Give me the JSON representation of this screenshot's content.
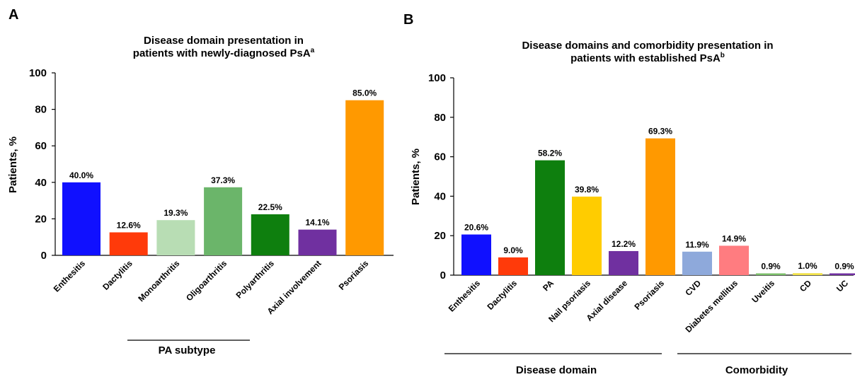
{
  "chart_data": [
    {
      "type": "bar",
      "panel": "A",
      "title_lines": [
        "Disease domain presentation in",
        "patients with newly-diagnosed PsA"
      ],
      "title_superscript": "a",
      "ylabel": "Patients, %",
      "ylim": [
        0,
        100
      ],
      "yticks": [
        0,
        20,
        40,
        60,
        80,
        100
      ],
      "categories": [
        "Enthesitis",
        "Dactylitis",
        "Monoarthritis",
        "Oligoarthritis",
        "Polyarthritis",
        "Axial involvement",
        "Psoriasis"
      ],
      "values": [
        40.0,
        12.6,
        19.3,
        37.3,
        22.5,
        14.1,
        85.0
      ],
      "value_labels": [
        "40.0%",
        "12.6%",
        "19.3%",
        "37.3%",
        "22.5%",
        "14.1%",
        "85.0%"
      ],
      "colors": [
        "#1010FF",
        "#FF3A0A",
        "#B8DDB4",
        "#6BB56A",
        "#0E7F0E",
        "#7030A0",
        "#FF9900"
      ],
      "group_labels": [
        "PA subtype"
      ]
    },
    {
      "type": "bar",
      "panel": "B",
      "title_lines": [
        "Disease domains and comorbidity presentation in",
        "patients with established PsA"
      ],
      "title_superscript": "b",
      "ylabel": "Patients, %",
      "ylim": [
        0,
        100
      ],
      "yticks": [
        0,
        20,
        40,
        60,
        80,
        100
      ],
      "categories": [
        "Enthesitis",
        "Dactylitis",
        "PA",
        "Nail psoriasis",
        "Axial disease",
        "Psoriasis",
        "CVD",
        "Diabetes mellitus",
        "Uveitis",
        "CD",
        "UC"
      ],
      "values": [
        20.6,
        9.0,
        58.2,
        39.8,
        12.2,
        69.3,
        11.9,
        14.9,
        0.9,
        1.0,
        0.9
      ],
      "value_labels": [
        "20.6%",
        "9.0%",
        "58.2%",
        "39.8%",
        "12.2%",
        "69.3%",
        "11.9%",
        "14.9%",
        "0.9%",
        "1.0%",
        "0.9%"
      ],
      "colors": [
        "#1010FF",
        "#FF3A0A",
        "#0E7F0E",
        "#FFCC00",
        "#7030A0",
        "#FF9900",
        "#8EA9DB",
        "#FF7C80",
        "#7BBF6A",
        "#F2E24A",
        "#7030A0"
      ],
      "group_labels": [
        "Disease domain",
        "Comorbidity"
      ]
    }
  ]
}
